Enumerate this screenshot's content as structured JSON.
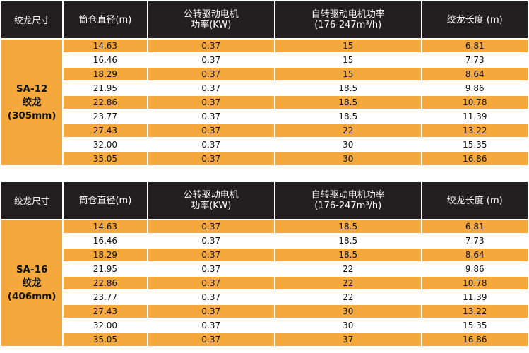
{
  "header": {
    "size": "绞龙尺寸",
    "diameter": "筒仓直径(m)",
    "rev_motor_line1": "公转驱动电机",
    "rev_motor_line2": "功率(KW)",
    "rot_motor_line1": "自转驱动电机功率",
    "rot_motor_line2": "(176-247m³/h)",
    "auger_length": "绞龙长度 (m)"
  },
  "tables": [
    {
      "model_line1": "SA-12",
      "model_line2": "绞龙",
      "model_line3": "(305mm)",
      "rows": [
        {
          "diameter": "14.63",
          "rev_power": "0.37",
          "rot_power": "15",
          "length": "6.81"
        },
        {
          "diameter": "16.46",
          "rev_power": "0.37",
          "rot_power": "15",
          "length": "7.73"
        },
        {
          "diameter": "18.29",
          "rev_power": "0.37",
          "rot_power": "15",
          "length": "8.64"
        },
        {
          "diameter": "21.95",
          "rev_power": "0.37",
          "rot_power": "18.5",
          "length": "9.86"
        },
        {
          "diameter": "22.86",
          "rev_power": "0.37",
          "rot_power": "18.5",
          "length": "10.78"
        },
        {
          "diameter": "23.77",
          "rev_power": "0.37",
          "rot_power": "18.5",
          "length": "11.39"
        },
        {
          "diameter": "27.43",
          "rev_power": "0.37",
          "rot_power": "22",
          "length": "13.22"
        },
        {
          "diameter": "32.00",
          "rev_power": "0.37",
          "rot_power": "30",
          "length": "15.35"
        },
        {
          "diameter": "35.05",
          "rev_power": "0.37",
          "rot_power": "30",
          "length": "16.86"
        }
      ]
    },
    {
      "model_line1": "SA-16",
      "model_line2": "绞龙",
      "model_line3": "(406mm)",
      "rows": [
        {
          "diameter": "14.63",
          "rev_power": "0.37",
          "rot_power": "18.5",
          "length": "6.81"
        },
        {
          "diameter": "16.46",
          "rev_power": "0.37",
          "rot_power": "18.5",
          "length": "7.73"
        },
        {
          "diameter": "18.29",
          "rev_power": "0.37",
          "rot_power": "18.5",
          "length": "8.64"
        },
        {
          "diameter": "21.95",
          "rev_power": "0.37",
          "rot_power": "22",
          "length": "9.86"
        },
        {
          "diameter": "22.86",
          "rev_power": "0.37",
          "rot_power": "22",
          "length": "10.78"
        },
        {
          "diameter": "23.77",
          "rev_power": "0.37",
          "rot_power": "22",
          "length": "11.39"
        },
        {
          "diameter": "27.43",
          "rev_power": "0.37",
          "rot_power": "30",
          "length": "13.22"
        },
        {
          "diameter": "32.00",
          "rev_power": "0.37",
          "rot_power": "30",
          "length": "15.35"
        },
        {
          "diameter": "35.05",
          "rev_power": "0.37",
          "rot_power": "37",
          "length": "16.86"
        }
      ]
    }
  ],
  "colors": {
    "header_bg": "#231f20",
    "accent_orange": "#f5a83c",
    "row_white": "#ffffff"
  }
}
